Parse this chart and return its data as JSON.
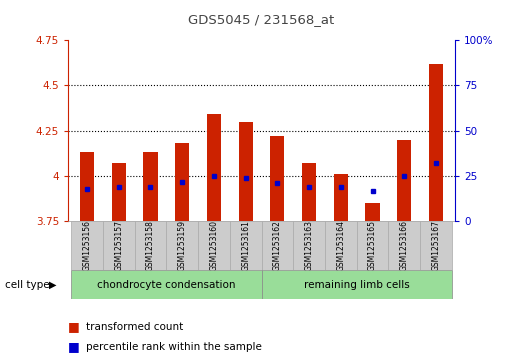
{
  "title": "GDS5045 / 231568_at",
  "samples": [
    "GSM1253156",
    "GSM1253157",
    "GSM1253158",
    "GSM1253159",
    "GSM1253160",
    "GSM1253161",
    "GSM1253162",
    "GSM1253163",
    "GSM1253164",
    "GSM1253165",
    "GSM1253166",
    "GSM1253167"
  ],
  "bar_values": [
    4.13,
    4.07,
    4.13,
    4.18,
    4.34,
    4.3,
    4.22,
    4.07,
    4.01,
    3.85,
    4.2,
    4.62
  ],
  "percentile_values": [
    3.93,
    3.94,
    3.94,
    3.97,
    4.0,
    3.99,
    3.96,
    3.94,
    3.94,
    3.92,
    4.0,
    4.07
  ],
  "bar_bottom": 3.75,
  "ylim_left": [
    3.75,
    4.75
  ],
  "ylim_right": [
    0,
    100
  ],
  "yticks_left": [
    3.75,
    4.0,
    4.25,
    4.5,
    4.75
  ],
  "ytick_labels_left": [
    "3.75",
    "4",
    "4.25",
    "4.5",
    "4.75"
  ],
  "yticks_right": [
    0,
    25,
    50,
    75,
    100
  ],
  "ytick_labels_right": [
    "0",
    "25",
    "50",
    "75",
    "100%"
  ],
  "dotted_lines": [
    4.0,
    4.25,
    4.5
  ],
  "bar_color": "#cc2200",
  "percentile_color": "#0000cc",
  "group1_label": "chondrocyte condensation",
  "group2_label": "remaining limb cells",
  "group1_indices": [
    0,
    1,
    2,
    3,
    4,
    5
  ],
  "group2_indices": [
    6,
    7,
    8,
    9,
    10,
    11
  ],
  "group1_bg": "#99dd99",
  "group2_bg": "#99dd99",
  "sample_bg": "#cccccc",
  "legend_transformed": "transformed count",
  "legend_percentile": "percentile rank within the sample",
  "cell_type_label": "cell type",
  "title_color": "#444444",
  "left_axis_color": "#cc2200",
  "right_axis_color": "#0000cc",
  "bar_width": 0.45
}
